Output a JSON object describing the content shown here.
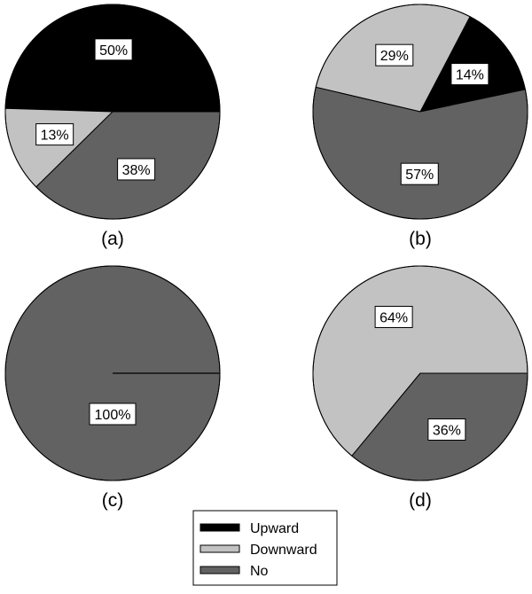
{
  "colors": {
    "Upward": "#000000",
    "Downward": "#c2c2c2",
    "No": "#626262",
    "outline": "#000000",
    "label_box": "#ffffff"
  },
  "legend": {
    "items": [
      "Upward",
      "Downward",
      "No"
    ]
  },
  "chart_data": [
    {
      "type": "pie",
      "panel": "(a)",
      "slices": [
        {
          "name": "Upward",
          "value": 50,
          "label": "50%"
        },
        {
          "name": "No",
          "value": 38,
          "label": "38%"
        },
        {
          "name": "Downward",
          "value": 13,
          "label": "13%"
        }
      ]
    },
    {
      "type": "pie",
      "panel": "(b)",
      "slices": [
        {
          "name": "Upward",
          "value": 14,
          "label": "14%"
        },
        {
          "name": "No",
          "value": 57,
          "label": "57%"
        },
        {
          "name": "Downward",
          "value": 29,
          "label": "29%"
        }
      ]
    },
    {
      "type": "pie",
      "panel": "(c)",
      "slices": [
        {
          "name": "Upward",
          "value": 0,
          "label": ""
        },
        {
          "name": "No",
          "value": 100,
          "label": "100%"
        },
        {
          "name": "Downward",
          "value": 0,
          "label": ""
        }
      ]
    },
    {
      "type": "pie",
      "panel": "(d)",
      "slices": [
        {
          "name": "Upward",
          "value": 0,
          "label": ""
        },
        {
          "name": "No",
          "value": 36,
          "label": "36%"
        },
        {
          "name": "Downward",
          "value": 64,
          "label": "64%"
        }
      ]
    }
  ]
}
